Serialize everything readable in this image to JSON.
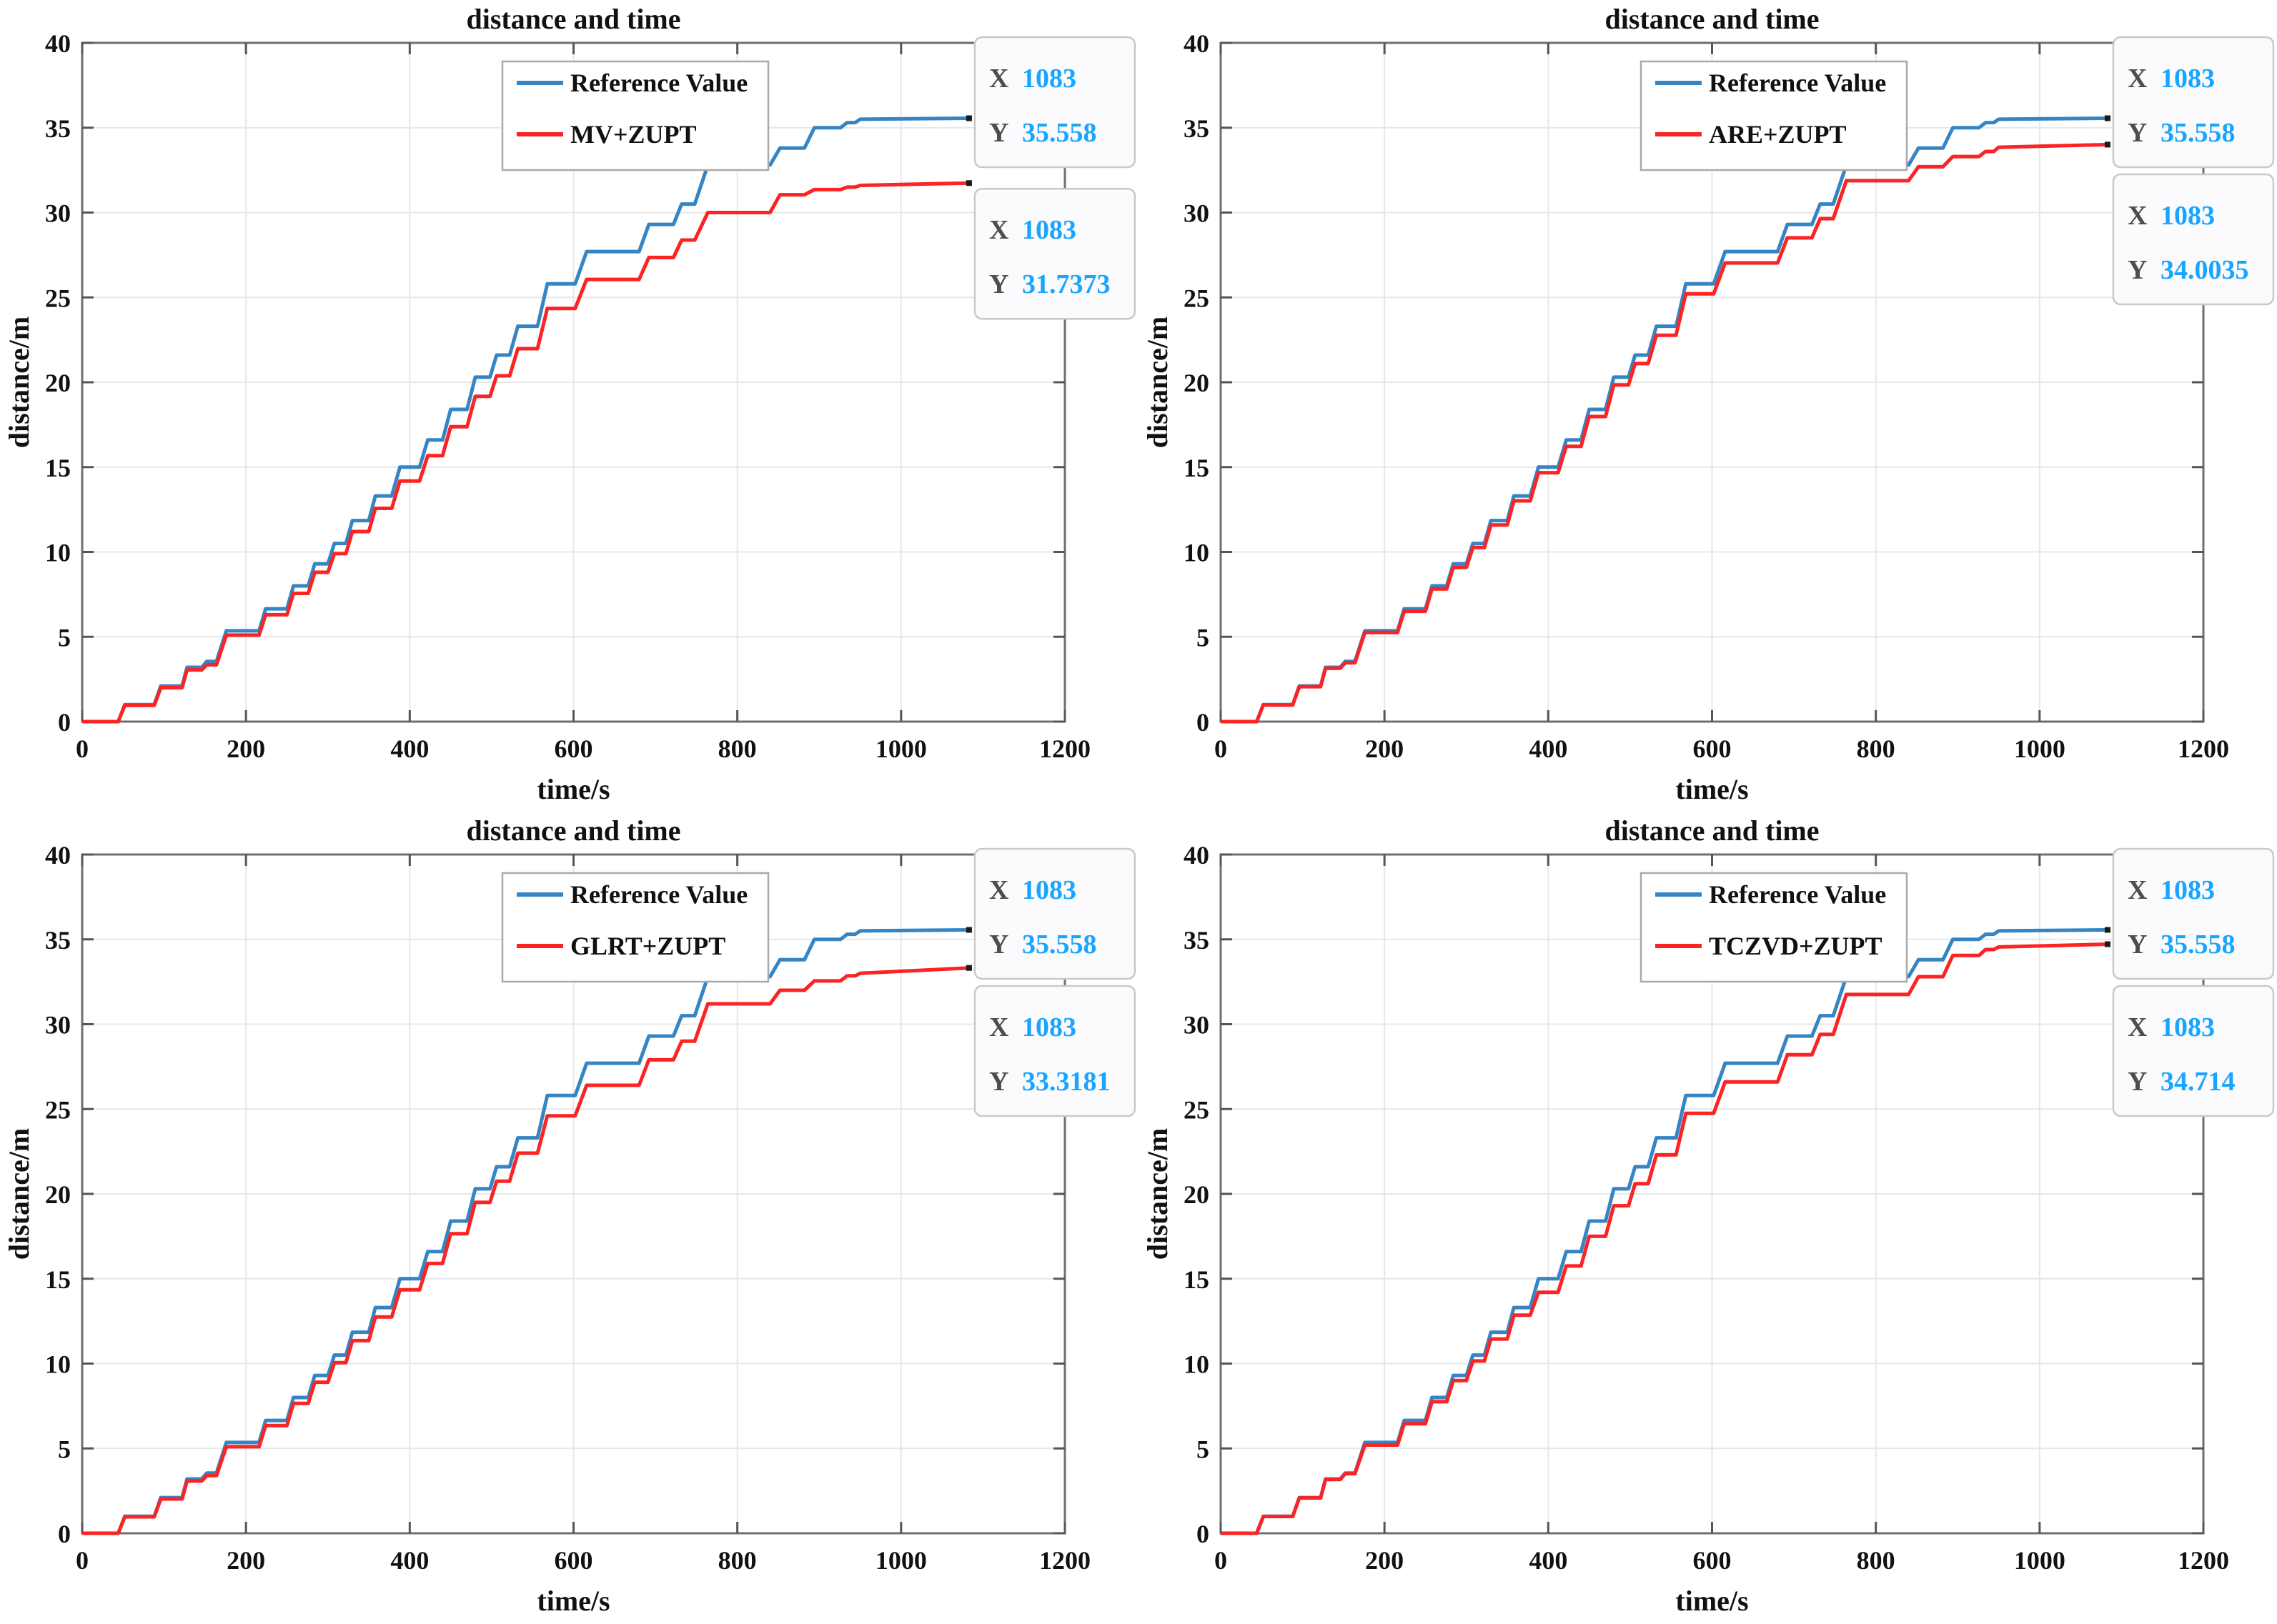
{
  "style": {
    "background": "#ffffff",
    "blue": "#3585c5",
    "red": "#fb2323",
    "grid_color": "#e7e7e7",
    "box_color": "#6f6f6f",
    "tick_color": "#555555",
    "text_color": "#111111",
    "legend_border": "#a9a9a9",
    "legend_bg": "#ffffff",
    "datatip_bg": "#fbfbfd",
    "datatip_border": "#c9c9c9",
    "datatip_value_color": "#18a5ff",
    "datatip_label_color": "#4d4d4d",
    "anchor_marker_color": "#1a1a1a"
  },
  "labels": {
    "datatip_x_label": "X",
    "datatip_y_label": "Y"
  },
  "chart_data": {
    "type": "line",
    "layout": "2x2 grid of four subplots",
    "title": "distance and time",
    "xlabel": "time/s",
    "ylabel": "distance/m",
    "xlim": [
      0,
      1200
    ],
    "ylim": [
      0,
      40
    ],
    "xticks": [
      0,
      200,
      400,
      600,
      800,
      1000,
      1200
    ],
    "yticks": [
      0,
      5,
      10,
      15,
      20,
      25,
      30,
      35,
      40
    ],
    "grid": true,
    "legend_position": "top-center-inside",
    "reference_series": {
      "name": "Reference Value",
      "color_key": "blue",
      "points": [
        [
          0,
          0
        ],
        [
          44,
          0
        ],
        [
          52,
          1.0
        ],
        [
          88,
          1.0
        ],
        [
          96,
          2.1
        ],
        [
          122,
          2.1
        ],
        [
          128,
          3.2
        ],
        [
          146,
          3.2
        ],
        [
          152,
          3.55
        ],
        [
          164,
          3.55
        ],
        [
          176,
          5.35
        ],
        [
          216,
          5.35
        ],
        [
          224,
          6.65
        ],
        [
          250,
          6.65
        ],
        [
          258,
          8.0
        ],
        [
          276,
          8.0
        ],
        [
          284,
          9.3
        ],
        [
          300,
          9.3
        ],
        [
          308,
          10.5
        ],
        [
          322,
          10.5
        ],
        [
          330,
          11.85
        ],
        [
          350,
          11.85
        ],
        [
          358,
          13.3
        ],
        [
          378,
          13.3
        ],
        [
          388,
          15.0
        ],
        [
          412,
          15.0
        ],
        [
          422,
          16.6
        ],
        [
          440,
          16.6
        ],
        [
          450,
          18.4
        ],
        [
          470,
          18.4
        ],
        [
          480,
          20.3
        ],
        [
          498,
          20.3
        ],
        [
          506,
          21.6
        ],
        [
          522,
          21.6
        ],
        [
          532,
          23.3
        ],
        [
          556,
          23.3
        ],
        [
          568,
          25.8
        ],
        [
          602,
          25.8
        ],
        [
          616,
          27.7
        ],
        [
          680,
          27.7
        ],
        [
          692,
          29.3
        ],
        [
          722,
          29.3
        ],
        [
          732,
          30.5
        ],
        [
          748,
          30.5
        ],
        [
          764,
          32.8
        ],
        [
          840,
          32.8
        ],
        [
          852,
          33.8
        ],
        [
          882,
          33.8
        ],
        [
          894,
          35.0
        ],
        [
          926,
          35.0
        ],
        [
          934,
          35.3
        ],
        [
          944,
          35.3
        ],
        [
          950,
          35.5
        ],
        [
          1083,
          35.558
        ]
      ]
    },
    "charts": [
      {
        "name": "MV+ZUPT",
        "color_key": "red",
        "points": [
          [
            0,
            0
          ],
          [
            44,
            0
          ],
          [
            52,
            0.96
          ],
          [
            88,
            0.96
          ],
          [
            96,
            2.0
          ],
          [
            122,
            2.0
          ],
          [
            128,
            3.05
          ],
          [
            146,
            3.05
          ],
          [
            152,
            3.35
          ],
          [
            164,
            3.35
          ],
          [
            176,
            5.1
          ],
          [
            216,
            5.1
          ],
          [
            224,
            6.3
          ],
          [
            250,
            6.3
          ],
          [
            258,
            7.56
          ],
          [
            276,
            7.56
          ],
          [
            284,
            8.8
          ],
          [
            300,
            8.8
          ],
          [
            308,
            9.9
          ],
          [
            322,
            9.9
          ],
          [
            330,
            11.2
          ],
          [
            350,
            11.2
          ],
          [
            358,
            12.57
          ],
          [
            378,
            12.57
          ],
          [
            388,
            14.18
          ],
          [
            412,
            14.18
          ],
          [
            422,
            15.67
          ],
          [
            440,
            15.67
          ],
          [
            450,
            17.38
          ],
          [
            470,
            17.38
          ],
          [
            480,
            19.17
          ],
          [
            498,
            19.17
          ],
          [
            506,
            20.38
          ],
          [
            522,
            20.38
          ],
          [
            532,
            21.98
          ],
          [
            556,
            21.98
          ],
          [
            568,
            24.35
          ],
          [
            602,
            24.35
          ],
          [
            616,
            26.06
          ],
          [
            680,
            26.06
          ],
          [
            692,
            27.35
          ],
          [
            722,
            27.35
          ],
          [
            732,
            28.38
          ],
          [
            748,
            28.38
          ],
          [
            764,
            30.0
          ],
          [
            840,
            30.0
          ],
          [
            852,
            31.05
          ],
          [
            882,
            31.05
          ],
          [
            894,
            31.35
          ],
          [
            926,
            31.35
          ],
          [
            934,
            31.5
          ],
          [
            944,
            31.5
          ],
          [
            950,
            31.6
          ],
          [
            1083,
            31.7373
          ]
        ],
        "datatips": [
          {
            "x": "1083",
            "y": "35.558"
          },
          {
            "x": "1083",
            "y": "31.7373"
          }
        ]
      },
      {
        "name": "ARE+ZUPT",
        "color_key": "red",
        "points": [
          [
            0,
            0
          ],
          [
            44,
            0
          ],
          [
            52,
            0.98
          ],
          [
            88,
            0.98
          ],
          [
            96,
            2.06
          ],
          [
            122,
            2.06
          ],
          [
            128,
            3.14
          ],
          [
            146,
            3.14
          ],
          [
            152,
            3.47
          ],
          [
            164,
            3.47
          ],
          [
            176,
            5.25
          ],
          [
            216,
            5.25
          ],
          [
            224,
            6.5
          ],
          [
            250,
            6.5
          ],
          [
            258,
            7.82
          ],
          [
            276,
            7.82
          ],
          [
            284,
            9.09
          ],
          [
            300,
            9.09
          ],
          [
            308,
            10.26
          ],
          [
            322,
            10.26
          ],
          [
            330,
            11.59
          ],
          [
            350,
            11.59
          ],
          [
            358,
            13.01
          ],
          [
            378,
            13.01
          ],
          [
            388,
            14.67
          ],
          [
            412,
            14.67
          ],
          [
            422,
            16.22
          ],
          [
            440,
            16.22
          ],
          [
            450,
            17.98
          ],
          [
            470,
            17.98
          ],
          [
            480,
            19.84
          ],
          [
            498,
            19.84
          ],
          [
            506,
            21.1
          ],
          [
            522,
            21.1
          ],
          [
            532,
            22.77
          ],
          [
            556,
            22.77
          ],
          [
            568,
            25.21
          ],
          [
            602,
            25.21
          ],
          [
            616,
            27.03
          ],
          [
            680,
            27.03
          ],
          [
            692,
            28.51
          ],
          [
            722,
            28.51
          ],
          [
            732,
            29.64
          ],
          [
            748,
            29.64
          ],
          [
            764,
            31.88
          ],
          [
            840,
            31.88
          ],
          [
            852,
            32.7
          ],
          [
            882,
            32.7
          ],
          [
            894,
            33.3
          ],
          [
            926,
            33.3
          ],
          [
            934,
            33.6
          ],
          [
            944,
            33.6
          ],
          [
            950,
            33.85
          ],
          [
            1083,
            34.0035
          ]
        ],
        "datatips": [
          {
            "x": "1083",
            "y": "35.558"
          },
          {
            "x": "1083",
            "y": "34.0035"
          }
        ]
      },
      {
        "name": "GLRT+ZUPT",
        "color_key": "red",
        "points": [
          [
            0,
            0
          ],
          [
            44,
            0
          ],
          [
            52,
            0.97
          ],
          [
            88,
            0.97
          ],
          [
            96,
            2.02
          ],
          [
            122,
            2.02
          ],
          [
            128,
            3.08
          ],
          [
            146,
            3.08
          ],
          [
            152,
            3.4
          ],
          [
            164,
            3.4
          ],
          [
            176,
            5.1
          ],
          [
            216,
            5.1
          ],
          [
            224,
            6.35
          ],
          [
            250,
            6.35
          ],
          [
            258,
            7.65
          ],
          [
            276,
            7.65
          ],
          [
            284,
            8.9
          ],
          [
            300,
            8.9
          ],
          [
            308,
            10.05
          ],
          [
            322,
            10.05
          ],
          [
            330,
            11.35
          ],
          [
            350,
            11.35
          ],
          [
            358,
            12.75
          ],
          [
            378,
            12.75
          ],
          [
            388,
            14.35
          ],
          [
            412,
            14.35
          ],
          [
            422,
            15.9
          ],
          [
            440,
            15.9
          ],
          [
            450,
            17.65
          ],
          [
            470,
            17.65
          ],
          [
            480,
            19.5
          ],
          [
            498,
            19.5
          ],
          [
            506,
            20.75
          ],
          [
            522,
            20.75
          ],
          [
            532,
            22.4
          ],
          [
            556,
            22.4
          ],
          [
            568,
            24.6
          ],
          [
            602,
            24.6
          ],
          [
            616,
            26.4
          ],
          [
            680,
            26.4
          ],
          [
            692,
            27.9
          ],
          [
            722,
            27.9
          ],
          [
            732,
            29.0
          ],
          [
            748,
            29.0
          ],
          [
            764,
            31.2
          ],
          [
            840,
            31.2
          ],
          [
            852,
            32.0
          ],
          [
            882,
            32.0
          ],
          [
            894,
            32.55
          ],
          [
            926,
            32.55
          ],
          [
            934,
            32.85
          ],
          [
            944,
            32.85
          ],
          [
            950,
            33.0
          ],
          [
            1083,
            33.3181
          ]
        ],
        "datatips": [
          {
            "x": "1083",
            "y": "35.558"
          },
          {
            "x": "1083",
            "y": "33.3181"
          }
        ]
      },
      {
        "name": "TCZVD+ZUPT",
        "color_key": "red",
        "points": [
          [
            0,
            0
          ],
          [
            44,
            0
          ],
          [
            52,
            0.99
          ],
          [
            88,
            0.99
          ],
          [
            96,
            2.08
          ],
          [
            122,
            2.08
          ],
          [
            128,
            3.17
          ],
          [
            146,
            3.17
          ],
          [
            152,
            3.51
          ],
          [
            164,
            3.51
          ],
          [
            176,
            5.2
          ],
          [
            216,
            5.2
          ],
          [
            224,
            6.45
          ],
          [
            250,
            6.45
          ],
          [
            258,
            7.75
          ],
          [
            276,
            7.75
          ],
          [
            284,
            9.0
          ],
          [
            300,
            9.0
          ],
          [
            308,
            10.15
          ],
          [
            322,
            10.15
          ],
          [
            330,
            11.45
          ],
          [
            350,
            11.45
          ],
          [
            358,
            12.85
          ],
          [
            378,
            12.85
          ],
          [
            388,
            14.2
          ],
          [
            412,
            14.2
          ],
          [
            422,
            15.75
          ],
          [
            440,
            15.75
          ],
          [
            450,
            17.5
          ],
          [
            470,
            17.5
          ],
          [
            480,
            19.3
          ],
          [
            498,
            19.3
          ],
          [
            506,
            20.6
          ],
          [
            522,
            20.6
          ],
          [
            532,
            22.3
          ],
          [
            556,
            22.3
          ],
          [
            568,
            24.75
          ],
          [
            602,
            24.75
          ],
          [
            616,
            26.6
          ],
          [
            680,
            26.6
          ],
          [
            692,
            28.2
          ],
          [
            722,
            28.2
          ],
          [
            732,
            29.4
          ],
          [
            748,
            29.4
          ],
          [
            764,
            31.75
          ],
          [
            840,
            31.75
          ],
          [
            852,
            32.8
          ],
          [
            882,
            32.8
          ],
          [
            894,
            34.05
          ],
          [
            926,
            34.05
          ],
          [
            934,
            34.4
          ],
          [
            944,
            34.4
          ],
          [
            950,
            34.55
          ],
          [
            1083,
            34.714
          ]
        ],
        "datatips": [
          {
            "x": "1083",
            "y": "35.558"
          },
          {
            "x": "1083",
            "y": "34.714"
          }
        ]
      }
    ]
  }
}
